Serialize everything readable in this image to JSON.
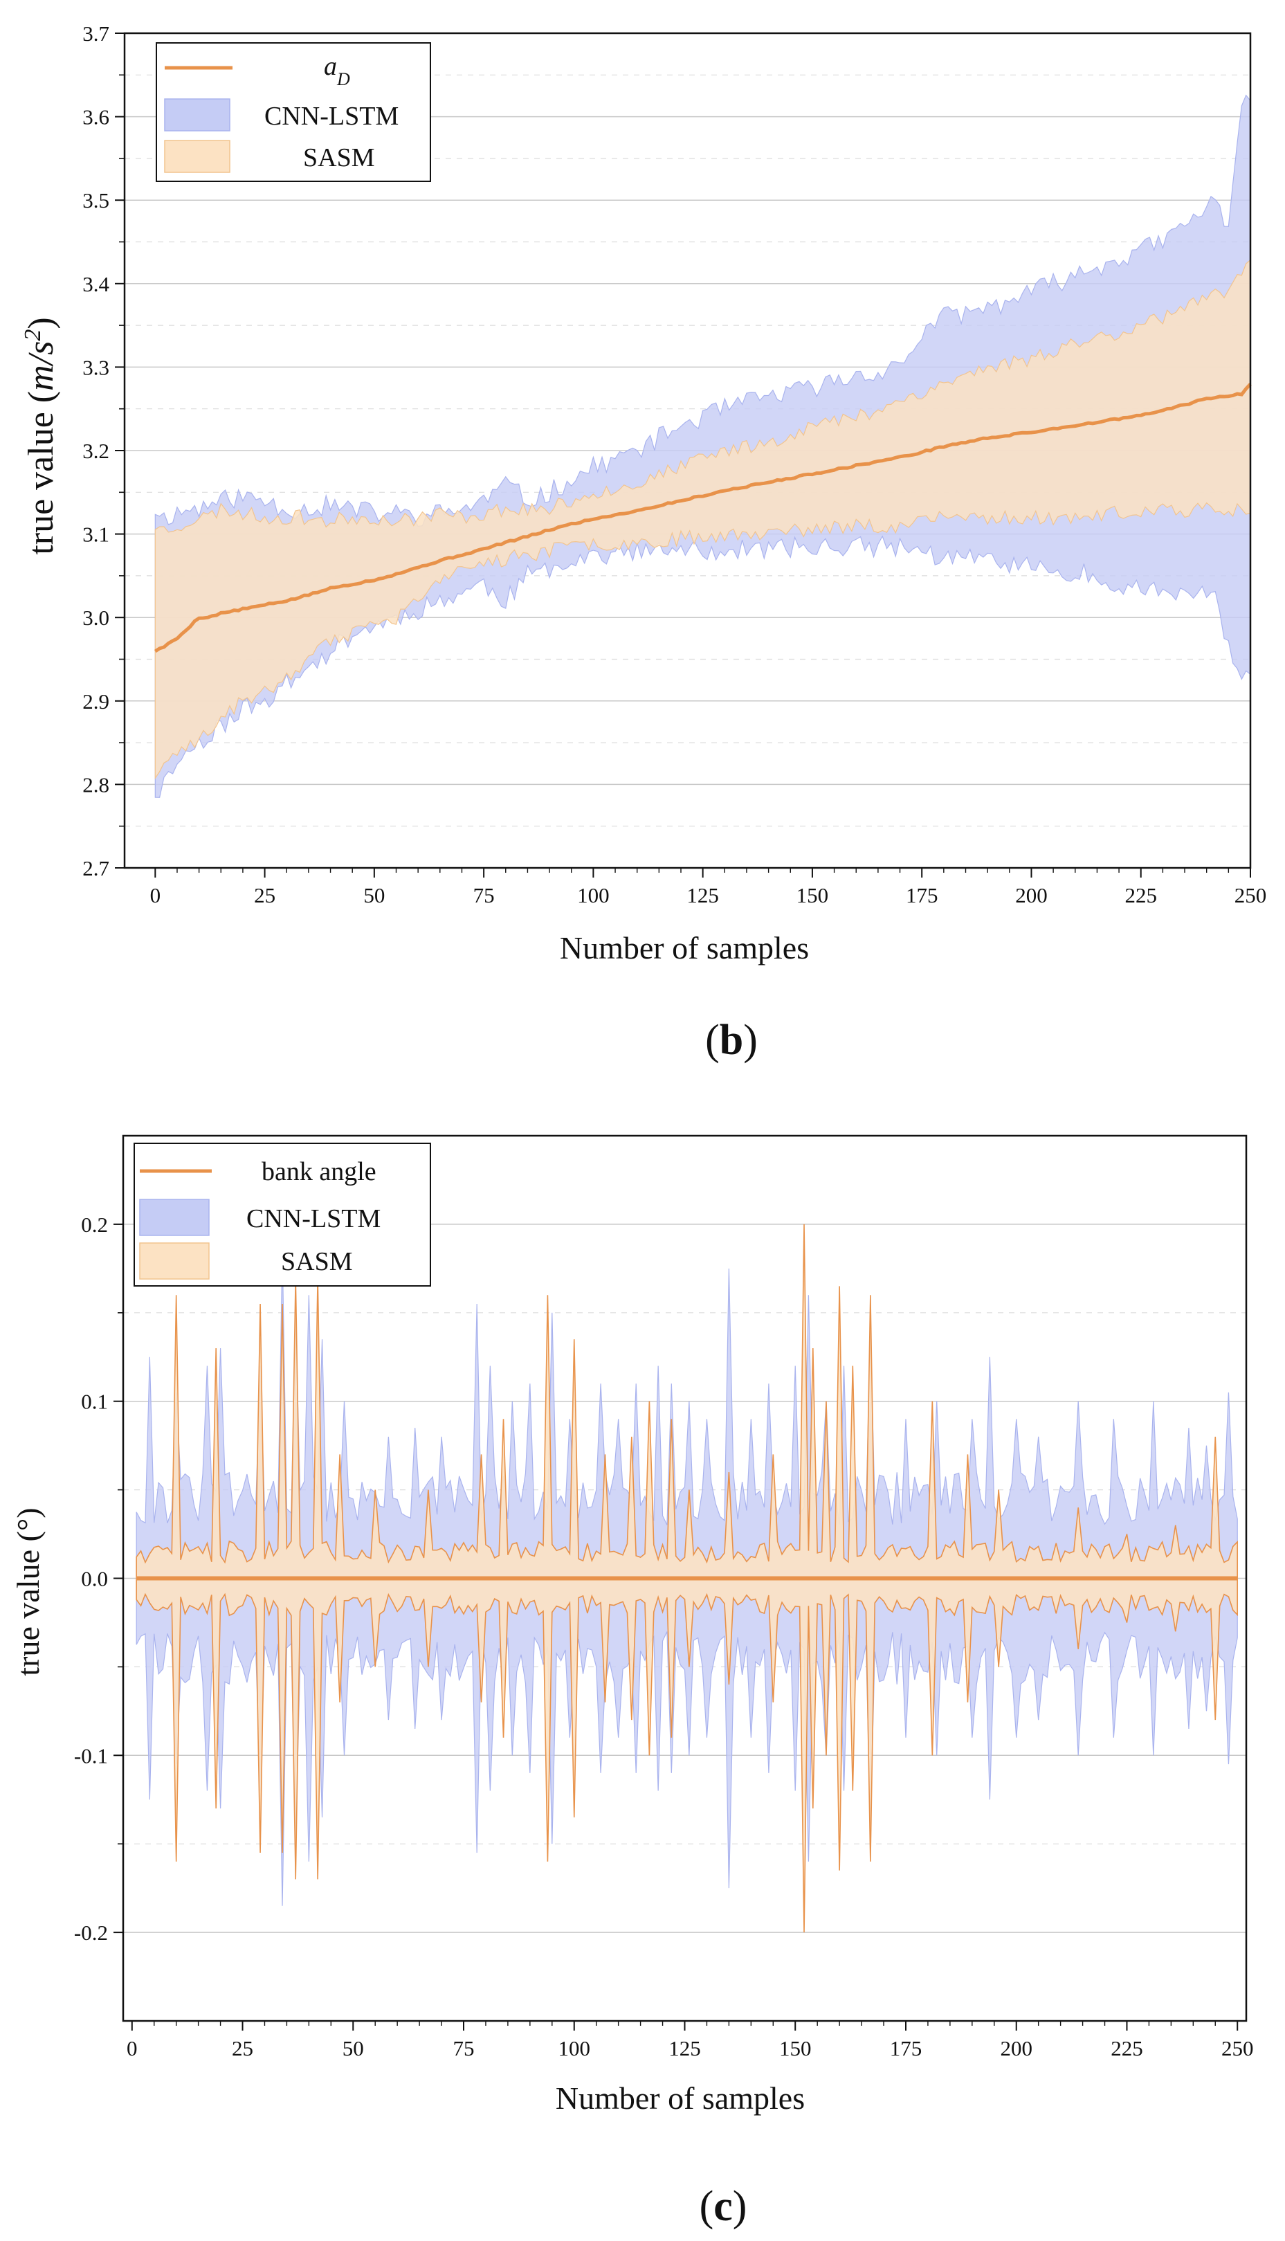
{
  "chart_data": [
    {
      "panel": "(b)",
      "caption_label": "b",
      "type": "area",
      "title": "",
      "xlabel": "Number of samples",
      "ylabel_text": "true value",
      "ylabel_unit_main": "m/s",
      "ylabel_unit_exp": "2",
      "xlim": [
        -7,
        250
      ],
      "ylim": [
        2.7,
        3.7
      ],
      "xticks": [
        0,
        25,
        50,
        75,
        100,
        125,
        150,
        175,
        200,
        225,
        250
      ],
      "yticks": [
        2.7,
        2.8,
        2.9,
        3.0,
        3.1,
        3.2,
        3.3,
        3.4,
        3.5,
        3.6,
        3.7
      ],
      "ytick_labels": [
        "2.7",
        "2.8",
        "2.9",
        "3.0",
        "3.1",
        "3.2",
        "3.3",
        "3.4",
        "3.5",
        "3.6",
        "3.7"
      ],
      "grid": true,
      "legend_position": "top-left",
      "legend": [
        {
          "key": "line",
          "label_main": "a",
          "label_sub": "D"
        },
        {
          "key": "cnn",
          "label": "CNN-LSTM"
        },
        {
          "key": "sasm",
          "label": "SASM"
        }
      ],
      "colors": {
        "line": "#E8924A",
        "cnn_fill": "#C5CCF5",
        "cnn_edge": "#A9B3EE",
        "sasm_fill": "#FCE2C3",
        "sasm_edge": "#F2C48E"
      },
      "x": [
        0,
        2,
        5,
        8,
        10,
        12,
        15,
        20,
        25,
        30,
        35,
        40,
        45,
        50,
        55,
        60,
        65,
        70,
        75,
        80,
        85,
        90,
        95,
        100,
        110,
        120,
        130,
        140,
        150,
        160,
        170,
        175,
        180,
        190,
        200,
        210,
        220,
        225,
        230,
        235,
        240,
        242,
        245,
        248,
        250
      ],
      "series": [
        {
          "name": "a_D",
          "values": [
            2.96,
            2.965,
            2.975,
            2.99,
            3.0,
            3.0,
            3.005,
            3.01,
            3.015,
            3.02,
            3.027,
            3.035,
            3.04,
            3.045,
            3.052,
            3.06,
            3.068,
            3.075,
            3.082,
            3.09,
            3.097,
            3.105,
            3.112,
            3.118,
            3.128,
            3.14,
            3.152,
            3.162,
            3.172,
            3.182,
            3.192,
            3.198,
            3.205,
            3.215,
            3.222,
            3.23,
            3.238,
            3.242,
            3.248,
            3.255,
            3.262,
            3.264,
            3.265,
            3.268,
            3.28
          ]
        },
        {
          "name": "CNN-LSTM",
          "lower": [
            2.79,
            2.8,
            2.83,
            2.84,
            2.85,
            2.86,
            2.87,
            2.89,
            2.9,
            2.92,
            2.94,
            2.96,
            2.98,
            2.99,
            3.0,
            3.01,
            3.02,
            3.03,
            3.04,
            3.02,
            3.05,
            3.06,
            3.07,
            3.075,
            3.078,
            3.08,
            3.08,
            3.082,
            3.085,
            3.085,
            3.085,
            3.08,
            3.07,
            3.07,
            3.06,
            3.055,
            3.04,
            3.035,
            3.03,
            3.03,
            3.025,
            3.02,
            2.97,
            2.93,
            2.92
          ],
          "upper": [
            3.13,
            3.12,
            3.125,
            3.13,
            3.13,
            3.135,
            3.14,
            3.145,
            3.14,
            3.13,
            3.13,
            3.135,
            3.13,
            3.125,
            3.125,
            3.12,
            3.125,
            3.13,
            3.14,
            3.16,
            3.14,
            3.15,
            3.165,
            3.18,
            3.2,
            3.23,
            3.25,
            3.265,
            3.275,
            3.29,
            3.3,
            3.34,
            3.36,
            3.37,
            3.39,
            3.41,
            3.43,
            3.44,
            3.45,
            3.47,
            3.49,
            3.5,
            3.47,
            3.62,
            3.63
          ]
        },
        {
          "name": "SASM",
          "lower": [
            2.81,
            2.82,
            2.835,
            2.85,
            2.855,
            2.86,
            2.88,
            2.9,
            2.91,
            2.93,
            2.95,
            2.97,
            2.98,
            2.99,
            3.0,
            3.02,
            3.04,
            3.06,
            3.065,
            3.07,
            3.075,
            3.08,
            3.085,
            3.088,
            3.09,
            3.095,
            3.1,
            3.1,
            3.105,
            3.11,
            3.11,
            3.115,
            3.12,
            3.12,
            3.12,
            3.12,
            3.125,
            3.125,
            3.128,
            3.128,
            3.13,
            3.13,
            3.13,
            3.13,
            3.13
          ],
          "upper": [
            3.11,
            3.105,
            3.11,
            3.115,
            3.12,
            3.12,
            3.13,
            3.125,
            3.12,
            3.12,
            3.12,
            3.115,
            3.12,
            3.12,
            3.115,
            3.12,
            3.125,
            3.12,
            3.125,
            3.13,
            3.13,
            3.13,
            3.14,
            3.15,
            3.16,
            3.18,
            3.2,
            3.21,
            3.23,
            3.24,
            3.26,
            3.27,
            3.28,
            3.3,
            3.31,
            3.33,
            3.34,
            3.355,
            3.36,
            3.37,
            3.38,
            3.385,
            3.39,
            3.41,
            3.43
          ]
        }
      ]
    },
    {
      "panel": "(c)",
      "caption_label": "c",
      "type": "area",
      "title": "",
      "xlabel": "Number of samples",
      "ylabel_text": "true value",
      "ylabel_unit": "(°)",
      "xlim": [
        -2,
        252
      ],
      "ylim": [
        -0.25,
        0.25
      ],
      "xticks": [
        0,
        25,
        50,
        75,
        100,
        125,
        150,
        175,
        200,
        225,
        250
      ],
      "yticks": [
        -0.2,
        -0.1,
        0.0,
        0.1,
        0.2
      ],
      "ytick_labels": [
        "-0.2",
        "-0.1",
        "0.0",
        "0.1",
        "0.2"
      ],
      "grid": true,
      "legend_position": "top-left",
      "legend": [
        {
          "key": "line",
          "label": "bank angle"
        },
        {
          "key": "cnn",
          "label": "CNN-LSTM"
        },
        {
          "key": "sasm",
          "label": "SASM"
        }
      ],
      "colors": {
        "line": "#E8924A",
        "cnn_fill": "#C5CCF5",
        "cnn_edge": "#A9B3EE",
        "sasm_fill": "#FCE2C3",
        "sasm_edge": "#F2C48E"
      },
      "series": [
        {
          "name": "bank angle",
          "constant": 0.0
        },
        {
          "name": "CNN-LSTM",
          "symmetric": true,
          "baseline": 0.045,
          "spikes": {
            "4": 0.125,
            "10": 0.105,
            "17": 0.12,
            "20": 0.13,
            "29": 0.12,
            "34": 0.185,
            "37": 0.15,
            "40": 0.16,
            "43": 0.135,
            "48": 0.1,
            "58": 0.08,
            "64": 0.085,
            "70": 0.08,
            "78": 0.155,
            "81": 0.12,
            "86": 0.1,
            "90": 0.11,
            "95": 0.15,
            "99": 0.09,
            "106": 0.11,
            "110": 0.09,
            "114": 0.11,
            "119": 0.12,
            "122": 0.11,
            "126": 0.1,
            "130": 0.09,
            "135": 0.175,
            "140": 0.09,
            "144": 0.11,
            "150": 0.12,
            "153": 0.16,
            "157": 0.1,
            "161": 0.12,
            "167": 0.14,
            "175": 0.09,
            "182": 0.1,
            "190": 0.09,
            "194": 0.125,
            "200": 0.09,
            "205": 0.08,
            "214": 0.1,
            "222": 0.09,
            "231": 0.1,
            "239": 0.085,
            "243": 0.075,
            "248": 0.105
          }
        },
        {
          "name": "SASM",
          "symmetric": true,
          "baseline": 0.015,
          "spikes": {
            "10": 0.16,
            "19": 0.13,
            "29": 0.155,
            "34": 0.155,
            "37": 0.17,
            "42": 0.17,
            "47": 0.07,
            "55": 0.05,
            "67": 0.05,
            "79": 0.07,
            "84": 0.09,
            "94": 0.16,
            "100": 0.135,
            "107": 0.07,
            "113": 0.08,
            "117": 0.1,
            "122": 0.09,
            "126": 0.05,
            "135": 0.06,
            "145": 0.07,
            "152": 0.2,
            "154": 0.13,
            "157": 0.1,
            "160": 0.165,
            "163": 0.12,
            "167": 0.16,
            "181": 0.1,
            "189": 0.07,
            "196": 0.05,
            "214": 0.04,
            "225": 0.025,
            "236": 0.03,
            "245": 0.08
          }
        }
      ]
    }
  ]
}
